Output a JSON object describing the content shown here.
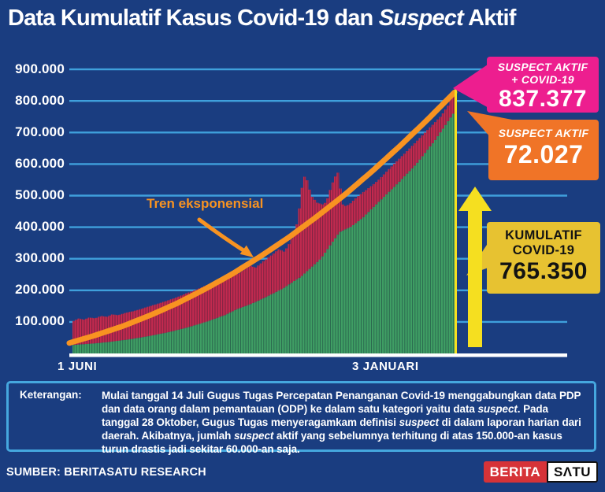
{
  "title": {
    "pre": "Data Kumulatif Kasus Covid-19 dan ",
    "italic": "Suspect",
    "post": " Aktif"
  },
  "colors": {
    "background": "#1A3D80",
    "gridline": "#3FA0DC",
    "axis_line": "#FFFFFF",
    "covid_green": "#3F9E64",
    "suspect_red": "#C22A4F",
    "trend_orange": "#F89321",
    "arrow_yellow": "#F5DF20",
    "marker_yellow_line": "#F5DF20",
    "callout_magenta": "#ED1E8F",
    "callout_orange": "#F07427",
    "callout_yellow": "#E7C231",
    "note_border_blue": "#45A7DE",
    "logo_red": "#D63338"
  },
  "chart_data": {
    "type": "bar",
    "stacked": true,
    "bars": 149,
    "grid": true,
    "x_axis": {
      "start_label": "1 JUNI",
      "end_label": "3 JANUARI"
    },
    "y_axis": {
      "ticks": [
        "900.000",
        "800.000",
        "700.000",
        "600.000",
        "500.000",
        "400.000",
        "300.000",
        "200.000",
        "100.000"
      ],
      "tick_values_thousands": [
        900,
        800,
        700,
        600,
        500,
        400,
        300,
        200,
        100
      ],
      "min": 0,
      "max": 900000
    },
    "series": [
      {
        "name": "KUMULATIF COVID-19",
        "color": "#3F9E64",
        "final_value": "765.350",
        "samples_t_value_thousands": [
          [
            0,
            27
          ],
          [
            0.05,
            31
          ],
          [
            0.1,
            37
          ],
          [
            0.15,
            45
          ],
          [
            0.2,
            55
          ],
          [
            0.25,
            67
          ],
          [
            0.3,
            82
          ],
          [
            0.35,
            100
          ],
          [
            0.4,
            122
          ],
          [
            0.43,
            140
          ],
          [
            0.47,
            158
          ],
          [
            0.5,
            175
          ],
          [
            0.55,
            205
          ],
          [
            0.6,
            245
          ],
          [
            0.65,
            300
          ],
          [
            0.68,
            352
          ],
          [
            0.7,
            385
          ],
          [
            0.73,
            402
          ],
          [
            0.76,
            430
          ],
          [
            0.8,
            478
          ],
          [
            0.85,
            537
          ],
          [
            0.9,
            600
          ],
          [
            0.95,
            677
          ],
          [
            1,
            765.35
          ]
        ]
      },
      {
        "name": "SUSPECT AKTIF + COVID-19",
        "color": "#C22A4F",
        "final_value": "837.377",
        "samples_t_value_thousands": [
          [
            0,
            100
          ],
          [
            0.015,
            111
          ],
          [
            0.03,
            107
          ],
          [
            0.045,
            114
          ],
          [
            0.06,
            111
          ],
          [
            0.075,
            119
          ],
          [
            0.09,
            116
          ],
          [
            0.105,
            124
          ],
          [
            0.12,
            121
          ],
          [
            0.14,
            129
          ],
          [
            0.16,
            134
          ],
          [
            0.18,
            141
          ],
          [
            0.2,
            149
          ],
          [
            0.22,
            156
          ],
          [
            0.24,
            164
          ],
          [
            0.26,
            172
          ],
          [
            0.28,
            181
          ],
          [
            0.3,
            191
          ],
          [
            0.32,
            200
          ],
          [
            0.34,
            210
          ],
          [
            0.36,
            221
          ],
          [
            0.38,
            232
          ],
          [
            0.4,
            244
          ],
          [
            0.415,
            256
          ],
          [
            0.43,
            250
          ],
          [
            0.45,
            266
          ],
          [
            0.465,
            278
          ],
          [
            0.48,
            272
          ],
          [
            0.5,
            292
          ],
          [
            0.52,
            310
          ],
          [
            0.54,
            330
          ],
          [
            0.555,
            322
          ],
          [
            0.57,
            352
          ],
          [
            0.58,
            380
          ],
          [
            0.59,
            420
          ],
          [
            0.6,
            520
          ],
          [
            0.605,
            555
          ],
          [
            0.61,
            565
          ],
          [
            0.615,
            545
          ],
          [
            0.625,
            500
          ],
          [
            0.64,
            478
          ],
          [
            0.655,
            472
          ],
          [
            0.665,
            480
          ],
          [
            0.675,
            520
          ],
          [
            0.685,
            555
          ],
          [
            0.693,
            570
          ],
          [
            0.698,
            578
          ],
          [
            0.704,
            478
          ],
          [
            0.712,
            466
          ],
          [
            0.725,
            472
          ],
          [
            0.74,
            490
          ],
          [
            0.76,
            510
          ],
          [
            0.78,
            528
          ],
          [
            0.8,
            548
          ],
          [
            0.84,
            598
          ],
          [
            0.88,
            646
          ],
          [
            0.92,
            696
          ],
          [
            0.965,
            752
          ],
          [
            0.985,
            788
          ],
          [
            1,
            837.377
          ]
        ]
      }
    ],
    "trend": {
      "label": "Tren eksponensial",
      "color": "#F89321",
      "samples_t_value_thousands": [
        [
          0,
          33
        ],
        [
          0.066,
          57
        ],
        [
          0.138,
          86
        ],
        [
          0.21,
          121
        ],
        [
          0.282,
          160
        ],
        [
          0.354,
          205
        ],
        [
          0.426,
          254
        ],
        [
          0.498,
          309
        ],
        [
          0.57,
          368
        ],
        [
          0.642,
          433
        ],
        [
          0.714,
          502
        ],
        [
          0.786,
          577
        ],
        [
          0.858,
          657
        ],
        [
          0.93,
          741
        ],
        [
          1,
          827
        ]
      ]
    }
  },
  "callouts": {
    "total": {
      "line1": "SUSPECT AKTIF",
      "line2": "+ COVID-19",
      "value": "837.377",
      "bg": "#ED1E8F"
    },
    "suspect": {
      "line1": "SUSPECT AKTIF",
      "value": "72.027",
      "bg": "#F07427"
    },
    "kumulatif": {
      "line1": "KUMULATIF",
      "line2": "COVID-19",
      "value": "765.350",
      "bg": "#E7C231"
    }
  },
  "note": {
    "label": "Keterangan:",
    "segments": [
      {
        "text": "Mulai tanggal 14 Juli Gugus Tugas Percepatan Penanganan Covid-19 menggabungkan data PDP dan data orang dalam pemantauan (ODP) ke dalam satu kategori yaitu data ",
        "italic": false
      },
      {
        "text": "suspect",
        "italic": true
      },
      {
        "text": ". Pada tanggal 28 Oktober, Gugus Tugas menyeragamkam definisi ",
        "italic": false
      },
      {
        "text": "suspect",
        "italic": true
      },
      {
        "text": " di dalam  laporan harian dari daerah. Akibatnya, jumlah ",
        "italic": false
      },
      {
        "text": "suspect",
        "italic": true
      },
      {
        "text": " aktif yang sebelumnya terhitung di atas 150.000-an kasus turun drastis jadi sekitar 60.000-an saja.",
        "italic": false
      }
    ]
  },
  "footer": {
    "source": "SUMBER: BERITASATU RESEARCH",
    "logo_left": "BERITA",
    "logo_right": "SΛTU"
  }
}
